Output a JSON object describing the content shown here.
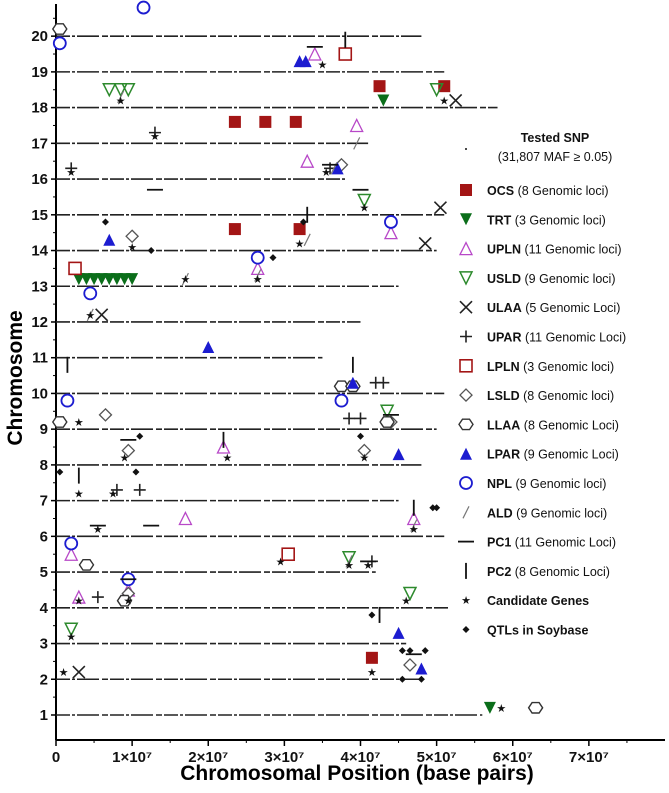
{
  "chart_data": {
    "type": "scatter",
    "xlabel": "Chromosomal Position (base pairs)",
    "ylabel": "Chromosome",
    "xlim": [
      0,
      80000000
    ],
    "ylim": [
      0.3,
      20.9
    ],
    "x_ticks": [
      {
        "value": 0,
        "label": "0"
      },
      {
        "value": 10000000,
        "label": "1×10⁷"
      },
      {
        "value": 20000000,
        "label": "2×10⁷"
      },
      {
        "value": 30000000,
        "label": "3×10⁷"
      },
      {
        "value": 40000000,
        "label": "4×10⁷"
      },
      {
        "value": 50000000,
        "label": "5×10⁷"
      },
      {
        "value": 60000000,
        "label": "6×10⁷"
      },
      {
        "value": 70000000,
        "label": "7×10⁷"
      }
    ],
    "y_ticks": [
      1,
      2,
      3,
      4,
      5,
      6,
      7,
      8,
      9,
      10,
      11,
      12,
      13,
      14,
      15,
      16,
      17,
      18,
      19,
      20
    ],
    "chromosome_lengths": [
      56,
      48,
      46,
      52,
      42,
      51,
      45,
      48,
      50,
      51,
      35,
      40,
      45,
      50,
      51,
      38,
      41,
      58,
      51,
      48
    ],
    "snp_legend": {
      "title": "Tested SNP",
      "subtitle": "(31,807 MAF ≥ 0.05)"
    },
    "series": [
      {
        "key": "OCS",
        "name": "OCS",
        "loci": "(8 Genomic loci)",
        "color": "#a31515",
        "marker": "square-filled",
        "points": [
          [
            23.5,
            17.6
          ],
          [
            27.5,
            17.6
          ],
          [
            31.5,
            17.6
          ],
          [
            42.5,
            18.6
          ],
          [
            51,
            18.6
          ],
          [
            23.5,
            14.6
          ],
          [
            32,
            14.6
          ],
          [
            41.5,
            2.6
          ]
        ]
      },
      {
        "key": "TRT",
        "name": "TRT",
        "loci": "(3 Genomic loci)",
        "color": "#0b6e1a",
        "marker": "triangle-down-filled",
        "points": [
          [
            43,
            18.2
          ],
          [
            57,
            1.2
          ],
          [
            3,
            13.2
          ],
          [
            4,
            13.2
          ],
          [
            5,
            13.2
          ],
          [
            6,
            13.2
          ],
          [
            7,
            13.2
          ],
          [
            8,
            13.2
          ],
          [
            9,
            13.2
          ],
          [
            10,
            13.2
          ]
        ]
      },
      {
        "key": "UPLN",
        "name": "UPLN",
        "loci": "(11 Genomic loci)",
        "color": "#b848c8",
        "marker": "triangle-up-open",
        "points": [
          [
            34,
            19.5
          ],
          [
            39.5,
            17.5
          ],
          [
            33,
            16.5
          ],
          [
            44,
            14.5
          ],
          [
            26.5,
            13.5
          ],
          [
            22,
            8.5
          ],
          [
            17,
            6.5
          ],
          [
            47,
            6.5
          ],
          [
            2,
            5.5
          ],
          [
            3,
            4.3
          ],
          [
            9.5,
            4.5
          ]
        ]
      },
      {
        "key": "USLD",
        "name": "USLD",
        "loci": "(9 Genomic loci)",
        "color": "#2d8a2d",
        "marker": "triangle-down-open",
        "points": [
          [
            7,
            18.5
          ],
          [
            8.5,
            18.5
          ],
          [
            9.5,
            18.5
          ],
          [
            50,
            18.5
          ],
          [
            40.5,
            15.4
          ],
          [
            43.5,
            9.5
          ],
          [
            38.5,
            5.4
          ],
          [
            46.5,
            4.4
          ],
          [
            2,
            3.4
          ]
        ]
      },
      {
        "key": "ULAA",
        "name": "ULAA",
        "loci": "(5 Genomic Loci)",
        "color": "#222",
        "marker": "x",
        "points": [
          [
            52.5,
            18.2
          ],
          [
            50.5,
            15.2
          ],
          [
            48.5,
            14.2
          ],
          [
            6,
            12.2
          ],
          [
            3,
            2.2
          ]
        ]
      },
      {
        "key": "UPAR",
        "name": "UPAR",
        "loci": "(11 Genomic Loci)",
        "color": "#222",
        "marker": "plus",
        "points": [
          [
            13,
            17.3
          ],
          [
            2,
            16.3
          ],
          [
            36,
            16.3
          ],
          [
            42,
            10.3
          ],
          [
            43,
            10.3
          ],
          [
            38.5,
            9.3
          ],
          [
            40,
            9.3
          ],
          [
            8,
            7.3
          ],
          [
            11,
            7.3
          ],
          [
            41.5,
            5.3
          ],
          [
            5.5,
            4.3
          ]
        ]
      },
      {
        "key": "LPLN",
        "name": "LPLN",
        "loci": "(3 Genomic loci)",
        "color": "#a31515",
        "marker": "square-open",
        "points": [
          [
            38,
            19.5
          ],
          [
            2.5,
            13.5
          ],
          [
            30.5,
            5.5
          ]
        ]
      },
      {
        "key": "LSLD",
        "name": "LSLD",
        "loci": "(8 Genomic loci)",
        "color": "#555",
        "marker": "diamond-open",
        "points": [
          [
            37.5,
            16.4
          ],
          [
            10,
            14.4
          ],
          [
            6.5,
            9.4
          ],
          [
            44,
            9.2
          ],
          [
            9.5,
            8.4
          ],
          [
            40.5,
            8.4
          ],
          [
            9.5,
            4.4
          ],
          [
            46.5,
            2.4
          ]
        ]
      },
      {
        "key": "LLAA",
        "name": "LLAA",
        "loci": "(8 Genomic Loci)",
        "color": "#333",
        "marker": "hexagon-open",
        "points": [
          [
            0.5,
            20.2
          ],
          [
            37.5,
            10.2
          ],
          [
            39,
            10.2
          ],
          [
            0.5,
            9.2
          ],
          [
            43.5,
            9.2
          ],
          [
            4,
            5.2
          ],
          [
            9,
            4.2
          ],
          [
            63,
            1.2
          ]
        ]
      },
      {
        "key": "LPAR",
        "name": "LPAR",
        "loci": "(9 Genomic Loci)",
        "color": "#1c1cd0",
        "marker": "triangle-up-filled",
        "points": [
          [
            32,
            19.3
          ],
          [
            32.8,
            19.3
          ],
          [
            37,
            16.3
          ],
          [
            7,
            14.3
          ],
          [
            20,
            11.3
          ],
          [
            39,
            10.3
          ],
          [
            45,
            8.3
          ],
          [
            45,
            3.3
          ],
          [
            48,
            2.3
          ]
        ]
      },
      {
        "key": "NPL",
        "name": "NPL",
        "loci": "(9 Genomic loci)",
        "color": "#1c1cd0",
        "marker": "circle-open",
        "points": [
          [
            11.5,
            20.8
          ],
          [
            0.5,
            19.8
          ],
          [
            44,
            14.8
          ],
          [
            26.5,
            13.8
          ],
          [
            4.5,
            12.8
          ],
          [
            1.5,
            9.8
          ],
          [
            37.5,
            9.8
          ],
          [
            2,
            5.8
          ],
          [
            9.5,
            4.8
          ]
        ]
      },
      {
        "key": "ALD",
        "name": "ALD",
        "loci": "(9 Genomic loci)",
        "color": "#777",
        "marker": "slash",
        "points": [
          [
            8.5,
            18.3
          ],
          [
            36.5,
            16.3
          ],
          [
            39.5,
            17
          ],
          [
            33,
            14.3
          ],
          [
            26.5,
            13.3
          ],
          [
            17,
            13.2
          ],
          [
            4.5,
            12.2
          ],
          [
            47,
            6.3
          ],
          [
            38.5,
            5.3
          ]
        ]
      },
      {
        "key": "PC1",
        "name": "PC1",
        "loci": "(11 Genomic Loci)",
        "color": "#111",
        "marker": "hline",
        "points": [
          [
            34,
            19.7
          ],
          [
            13,
            15.7
          ],
          [
            40,
            15.7
          ],
          [
            36,
            16.4
          ],
          [
            9.5,
            8.7
          ],
          [
            12.5,
            6.3
          ],
          [
            5.5,
            6.3
          ],
          [
            44,
            9.4
          ],
          [
            9.5,
            4.8
          ],
          [
            41,
            5.3
          ],
          [
            47,
            2.7
          ]
        ]
      },
      {
        "key": "PC2",
        "name": "PC2",
        "loci": "(8 Genomic Loci)",
        "color": "#111",
        "marker": "vline",
        "points": [
          [
            38,
            19.9
          ],
          [
            33,
            15.0
          ],
          [
            1.5,
            10.8
          ],
          [
            39,
            10.8
          ],
          [
            22,
            8.7
          ],
          [
            3,
            7.7
          ],
          [
            47,
            6.8
          ],
          [
            42.5,
            3.8
          ]
        ]
      },
      {
        "key": "CG",
        "name": "Candidate Genes",
        "loci": "",
        "color": "#111",
        "marker": "star",
        "points": [
          [
            35,
            19.2
          ],
          [
            8.5,
            18.2
          ],
          [
            51,
            18.2
          ],
          [
            13,
            17.2
          ],
          [
            2,
            16.2
          ],
          [
            35.5,
            16.2
          ],
          [
            40.5,
            15.2
          ],
          [
            32,
            14.2
          ],
          [
            10,
            14.1
          ],
          [
            26.5,
            13.2
          ],
          [
            17,
            13.2
          ],
          [
            4.5,
            12.2
          ],
          [
            3,
            9.2
          ],
          [
            9,
            8.2
          ],
          [
            22.5,
            8.2
          ],
          [
            40.5,
            8.2
          ],
          [
            3,
            7.2
          ],
          [
            7.5,
            7.2
          ],
          [
            5.5,
            6.2
          ],
          [
            47,
            6.2
          ],
          [
            29.5,
            5.3
          ],
          [
            38.5,
            5.2
          ],
          [
            41,
            5.2
          ],
          [
            3,
            4.2
          ],
          [
            9.5,
            4.2
          ],
          [
            46,
            4.2
          ],
          [
            2,
            3.2
          ],
          [
            1,
            2.2
          ],
          [
            41.5,
            2.2
          ],
          [
            58.5,
            1.2
          ]
        ]
      },
      {
        "key": "QTL",
        "name": "QTLs  in Soybase",
        "loci": "",
        "color": "#111",
        "marker": "diamond-filled",
        "points": [
          [
            6.5,
            14.8
          ],
          [
            32.5,
            14.8
          ],
          [
            12.5,
            14.0
          ],
          [
            28.5,
            13.8
          ],
          [
            11,
            8.8
          ],
          [
            40,
            8.8
          ],
          [
            10.5,
            7.8
          ],
          [
            0.5,
            7.8
          ],
          [
            49.5,
            6.8
          ],
          [
            50,
            6.8
          ],
          [
            41.5,
            3.8
          ],
          [
            45.5,
            2.8
          ],
          [
            46.5,
            2.8
          ],
          [
            48.5,
            2.8
          ],
          [
            45.5,
            2.0
          ],
          [
            48,
            2.0
          ]
        ]
      }
    ]
  }
}
